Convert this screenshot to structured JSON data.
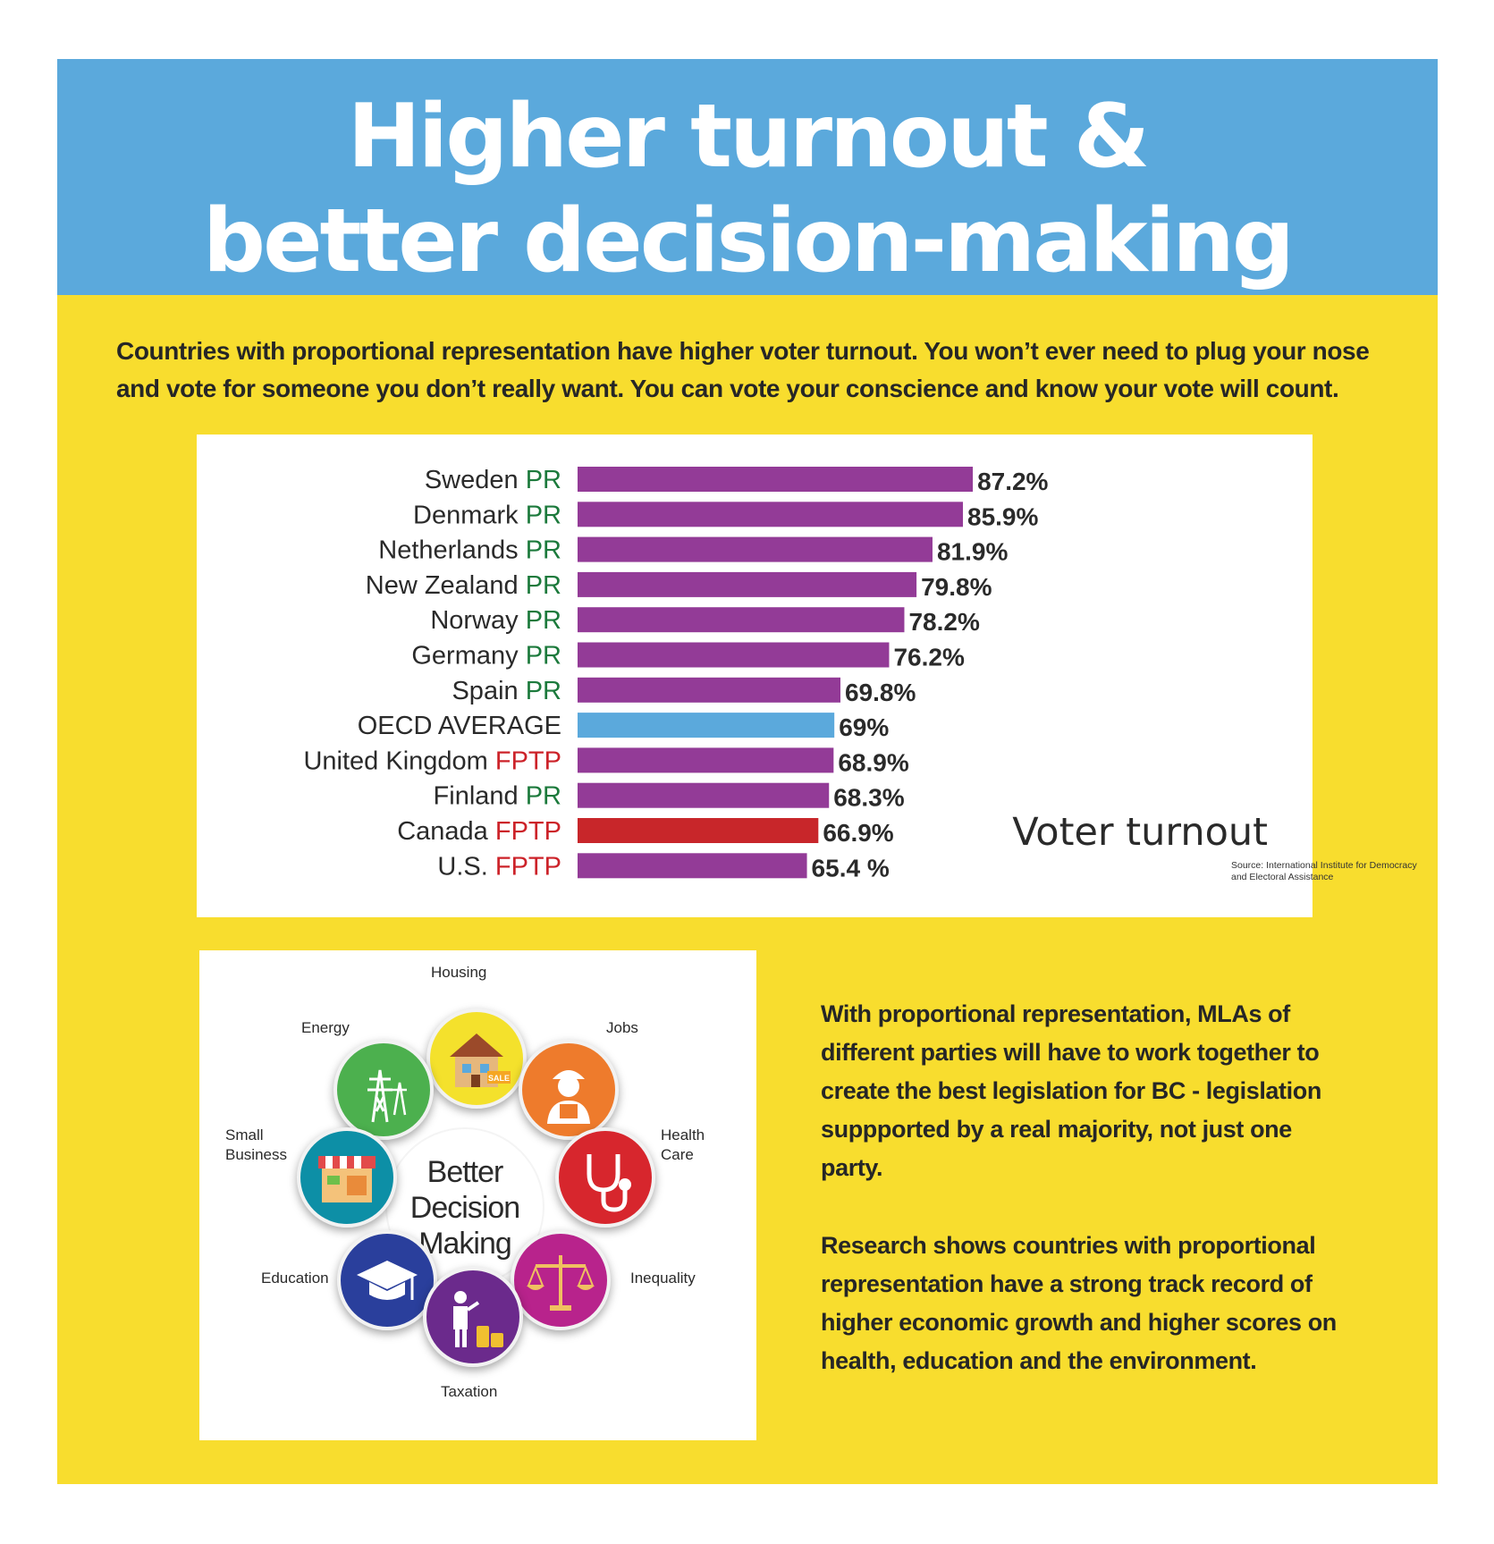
{
  "header": {
    "title_line1": "Higher turnout &",
    "title_line2": "better decision-making"
  },
  "intro_text": "Countries with proportional representation have higher voter turnout. You won’t ever need to plug your nose and vote for someone you don’t really want. You can vote your conscience and know your vote will count.",
  "chart_data": {
    "type": "bar",
    "orientation": "horizontal",
    "title": "Voter turnout",
    "source": "Source: International Institute for Democracy and Electoral Assistance",
    "categories": [
      "Sweden",
      "Denmark",
      "Netherlands",
      "New Zealand",
      "Norway",
      "Germany",
      "Spain",
      "OECD AVERAGE",
      "United Kingdom",
      "Finland",
      "Canada",
      "U.S."
    ],
    "systems": [
      "PR",
      "PR",
      "PR",
      "PR",
      "PR",
      "PR",
      "PR",
      "",
      "FPTP",
      "PR",
      "FPTP",
      "FPTP"
    ],
    "values": [
      87.2,
      85.9,
      81.9,
      79.8,
      78.2,
      76.2,
      69.8,
      69,
      68.9,
      68.3,
      66.9,
      65.4
    ],
    "value_labels": [
      "87.2%",
      "85.9%",
      "81.9%",
      "79.8%",
      "78.2%",
      "76.2%",
      "69.8%",
      "69%",
      "68.9%",
      "68.3%",
      "66.9%",
      "65.4 %"
    ],
    "bar_colors": [
      "#933b97",
      "#933b97",
      "#933b97",
      "#933b97",
      "#933b97",
      "#933b97",
      "#933b97",
      "#5ba9dc",
      "#933b97",
      "#933b97",
      "#c8262a",
      "#933b97"
    ],
    "system_colors": {
      "PR": "#1c7a3c",
      "FPTP": "#cc2229"
    }
  },
  "wheel": {
    "center_lines": [
      "Better",
      "Decision",
      "Making"
    ],
    "labels": {
      "housing": "Housing",
      "jobs": "Jobs",
      "energy": "Energy",
      "health_line1": "Health",
      "health_line2": "Care",
      "small_business_line1": "Small",
      "small_business_line2": "Business",
      "education": "Education",
      "inequality": "Inequality",
      "taxation": "Taxation"
    },
    "sale_sign": "SALE",
    "icons": [
      "house-icon",
      "worker-icon",
      "power-tower-icon",
      "stethoscope-icon",
      "market-stall-icon",
      "graduation-cap-icon",
      "scales-icon",
      "coins-person-icon"
    ]
  },
  "paragraphs": {
    "p1": "With proportional representation, MLAs of different parties will have to work together to create the best legislation for BC - legislation suppported by a real majority, not just one party.",
    "p2": "Research shows countries with proportional representation have a strong track record of higher economic growth and higher scores on health, education and the environment."
  }
}
